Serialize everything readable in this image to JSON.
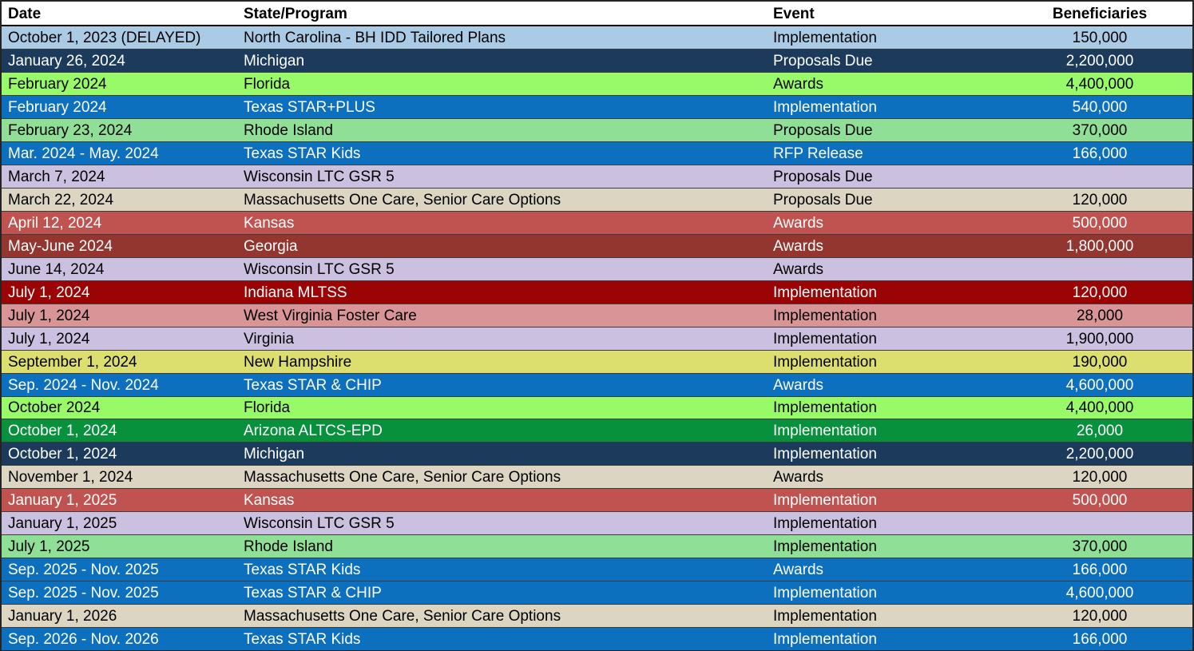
{
  "chart_data": {
    "type": "table",
    "title": "",
    "columns": [
      "Date",
      "State/Program",
      "Event",
      "Beneficiaries"
    ],
    "palette_note": {
      "header_bg": "#FFFFFF",
      "header_text": "#000000",
      "row_separator": "#3C3C3C",
      "outer_border": "#242424"
    },
    "rows": [
      {
        "date": "October 1, 2023 (DELAYED)",
        "state_program": "North Carolina -  BH IDD Tailored Plans",
        "event": "Implementation",
        "beneficiaries": "150,000",
        "bg": "#AACBE6",
        "fg": "#000000"
      },
      {
        "date": "January 26, 2024",
        "state_program": "Michigan",
        "event": "Proposals Due",
        "beneficiaries": "2,200,000",
        "bg": "#1C3A5C",
        "fg": "#FFFFFF"
      },
      {
        "date": "February 2024",
        "state_program": "Florida",
        "event": "Awards",
        "beneficiaries": "4,400,000",
        "bg": "#98FA68",
        "fg": "#000000"
      },
      {
        "date": "February 2024",
        "state_program": "Texas STAR+PLUS",
        "event": "Implementation",
        "beneficiaries": "540,000",
        "bg": "#0C70BE",
        "fg": "#FFFFFF"
      },
      {
        "date": "February 23, 2024",
        "state_program": "Rhode Island",
        "event": "Proposals Due",
        "beneficiaries": "370,000",
        "bg": "#8FE096",
        "fg": "#000000"
      },
      {
        "date": "Mar. 2024 - May. 2024",
        "state_program": "Texas STAR Kids",
        "event": "RFP Release",
        "beneficiaries": "166,000",
        "bg": "#0C70BE",
        "fg": "#FFFFFF"
      },
      {
        "date": "March 7, 2024",
        "state_program": "Wisconsin LTC GSR 5",
        "event": "Proposals Due",
        "beneficiaries": "",
        "bg": "#CBC0DF",
        "fg": "#000000"
      },
      {
        "date": "March 22, 2024",
        "state_program": "Massachusetts One Care, Senior Care Options",
        "event": "Proposals Due",
        "beneficiaries": "120,000",
        "bg": "#DBD5C2",
        "fg": "#000000"
      },
      {
        "date": "April 12, 2024",
        "state_program": "Kansas",
        "event": "Awards",
        "beneficiaries": "500,000",
        "bg": "#C05350",
        "fg": "#FFFFFF"
      },
      {
        "date": "May-June 2024",
        "state_program": "Georgia",
        "event": "Awards",
        "beneficiaries": "1,800,000",
        "bg": "#93362F",
        "fg": "#FFFFFF"
      },
      {
        "date": "June 14, 2024",
        "state_program": "Wisconsin LTC GSR 5",
        "event": "Awards",
        "beneficiaries": "",
        "bg": "#CBC0DF",
        "fg": "#000000"
      },
      {
        "date": "July 1, 2024",
        "state_program": "Indiana MLTSS",
        "event": "Implementation",
        "beneficiaries": "120,000",
        "bg": "#9B0404",
        "fg": "#FFFFFF"
      },
      {
        "date": "July 1, 2024",
        "state_program": "West Virginia Foster Care",
        "event": "Implementation",
        "beneficiaries": "28,000",
        "bg": "#D89497",
        "fg": "#000000"
      },
      {
        "date": "July 1, 2024",
        "state_program": "Virginia",
        "event": "Implementation",
        "beneficiaries": "1,900,000",
        "bg": "#CBC0DF",
        "fg": "#000000"
      },
      {
        "date": "September 1, 2024",
        "state_program": "New Hampshire",
        "event": "Implementation",
        "beneficiaries": "190,000",
        "bg": "#DCDF6D",
        "fg": "#000000"
      },
      {
        "date": "Sep. 2024 - Nov. 2024",
        "state_program": "Texas STAR & CHIP",
        "event": "Awards",
        "beneficiaries": "4,600,000",
        "bg": "#0C70BE",
        "fg": "#FFFFFF"
      },
      {
        "date": "October 2024",
        "state_program": "Florida",
        "event": "Implementation",
        "beneficiaries": "4,400,000",
        "bg": "#98FA68",
        "fg": "#000000"
      },
      {
        "date": "October 1, 2024",
        "state_program": "Arizona ALTCS-EPD",
        "event": "Implementation",
        "beneficiaries": "26,000",
        "bg": "#07913C",
        "fg": "#FFFFFF"
      },
      {
        "date": "October 1, 2024",
        "state_program": "Michigan",
        "event": "Implementation",
        "beneficiaries": "2,200,000",
        "bg": "#1C3A5C",
        "fg": "#FFFFFF"
      },
      {
        "date": "November 1, 2024",
        "state_program": "Massachusetts One Care, Senior Care Options",
        "event": "Awards",
        "beneficiaries": "120,000",
        "bg": "#DBD5C2",
        "fg": "#000000"
      },
      {
        "date": "January 1, 2025",
        "state_program": "Kansas",
        "event": "Implementation",
        "beneficiaries": "500,000",
        "bg": "#C05350",
        "fg": "#FFFFFF"
      },
      {
        "date": "January 1, 2025",
        "state_program": "Wisconsin LTC GSR 5",
        "event": "Implementation",
        "beneficiaries": "",
        "bg": "#CBC0DF",
        "fg": "#000000"
      },
      {
        "date": "July 1, 2025",
        "state_program": "Rhode Island",
        "event": "Implementation",
        "beneficiaries": "370,000",
        "bg": "#8FE096",
        "fg": "#000000"
      },
      {
        "date": "Sep. 2025 - Nov. 2025",
        "state_program": "Texas STAR Kids",
        "event": "Awards",
        "beneficiaries": "166,000",
        "bg": "#0C70BE",
        "fg": "#FFFFFF"
      },
      {
        "date": "Sep. 2025 - Nov. 2025",
        "state_program": "Texas STAR & CHIP",
        "event": "Implementation",
        "beneficiaries": "4,600,000",
        "bg": "#0C70BE",
        "fg": "#FFFFFF"
      },
      {
        "date": "January 1, 2026",
        "state_program": "Massachusetts One Care, Senior Care Options",
        "event": "Implementation",
        "beneficiaries": "120,000",
        "bg": "#DBD5C2",
        "fg": "#000000"
      },
      {
        "date": "Sep. 2026 - Nov. 2026",
        "state_program": "Texas STAR Kids",
        "event": "Implementation",
        "beneficiaries": "166,000",
        "bg": "#0C70BE",
        "fg": "#FFFFFF"
      }
    ]
  }
}
